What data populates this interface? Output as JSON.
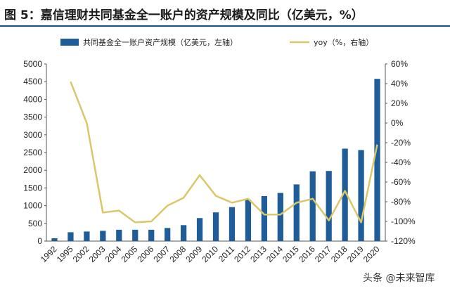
{
  "figure": {
    "title": "图 5：嘉信理财共同基金全一账户的资产规模及同比（亿美元，%）"
  },
  "watermark": "头条 @未来智库",
  "colors": {
    "bar": "#1f5d99",
    "line": "#d9c76a",
    "title_rule": "#1a4f80"
  },
  "chart_data": {
    "type": "bar",
    "categories": [
      "1992",
      "1995",
      "2002",
      "2003",
      "2004",
      "2005",
      "2006",
      "2007",
      "2008",
      "2009",
      "2010",
      "2011",
      "2012",
      "2013",
      "2014",
      "2015",
      "2016",
      "2017",
      "2018",
      "2019",
      "2020"
    ],
    "series": [
      {
        "name": "共同基金全一账户资产规模（亿美元，左轴）",
        "type": "bar",
        "axis": "left",
        "values": [
          80,
          250,
          270,
          290,
          320,
          320,
          320,
          370,
          450,
          650,
          810,
          960,
          1170,
          1270,
          1360,
          1600,
          1970,
          1980,
          2610,
          2570,
          4580
        ]
      },
      {
        "name": "yoy（%，右轴）",
        "type": "line",
        "axis": "right",
        "values": [
          null,
          42,
          0,
          -91,
          -89,
          -101,
          -100,
          -84,
          -76,
          -53,
          -74,
          -81,
          -77,
          -93,
          -93,
          -81,
          -77,
          -99,
          -69,
          -101,
          -22
        ]
      }
    ],
    "y_left": {
      "min": 0,
      "max": 5000,
      "ticks": [
        0,
        500,
        1000,
        1500,
        2000,
        2500,
        3000,
        3500,
        4000,
        4500,
        5000
      ]
    },
    "y_right": {
      "min": -120,
      "max": 60,
      "ticks": [
        "-120%",
        "-100%",
        "-80%",
        "-60%",
        "-40%",
        "-20%",
        "0%",
        "20%",
        "40%",
        "60%"
      ]
    },
    "legend_position": "top",
    "grid": false
  }
}
